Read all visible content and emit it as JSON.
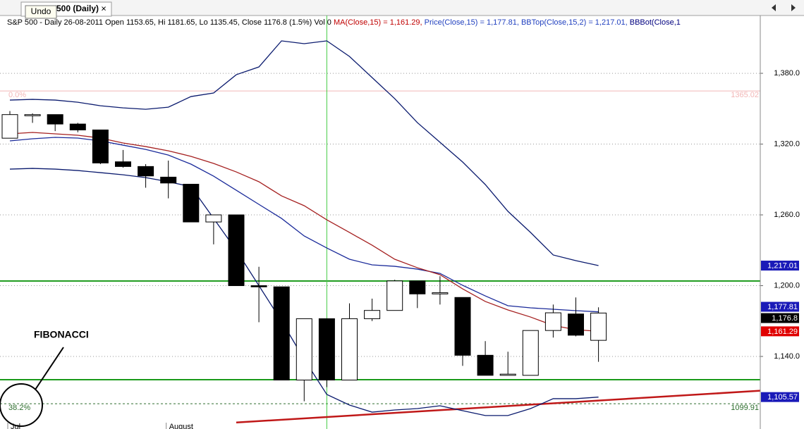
{
  "window": {
    "tab_title": "500 (Daily)",
    "tab_close": "×",
    "tooltip": "Undo"
  },
  "chart_data": {
    "type": "candlestick",
    "header": [
      {
        "text": "S&P 500 - Daily 26-08-2011 Open 1153.65, Hi 1181.65, Lo 1135.45, Close 1176.8 (1.5%) Vol 0 ",
        "color": "#000000"
      },
      {
        "text": "MA(Close,15) = 1,161.29, ",
        "color": "#c00000"
      },
      {
        "text": "Price(Close,15) = 1,177.81, ",
        "color": "#1f3fbf"
      },
      {
        "text": "BBTop(Close,15,2) = 1,217.01, ",
        "color": "#1f3fbf"
      },
      {
        "text": "BBBot(Close,1",
        "color": "#00007f"
      }
    ],
    "categories": [
      "Jul",
      null,
      null,
      null,
      null,
      null,
      null,
      "August",
      null,
      null,
      null,
      null,
      null,
      null,
      null,
      null,
      null,
      null,
      null,
      null,
      null,
      null,
      null,
      null,
      null,
      null,
      null
    ],
    "open": [
      1325,
      1344,
      1345,
      1337,
      1332,
      1305,
      1301,
      1292,
      1286,
      1254,
      1260,
      1200,
      1199,
      1120,
      1172,
      1120,
      1172,
      1179,
      1204,
      1193,
      1190,
      1141,
      1124,
      1124,
      1162,
      1176,
      1153.65
    ],
    "high": [
      1348,
      1346,
      1345,
      1338,
      1332,
      1315,
      1303,
      1306,
      1286,
      1260,
      1260,
      1216,
      1199,
      1172,
      1172,
      1185,
      1189,
      1205,
      1204,
      1208,
      1190,
      1153,
      1144,
      1162,
      1184,
      1190,
      1181.65
    ],
    "low": [
      1325,
      1338,
      1331,
      1330,
      1303,
      1300,
      1283,
      1274,
      1254,
      1235,
      1200,
      1169,
      1120,
      1102,
      1114,
      1120,
      1170,
      1179,
      1181,
      1184,
      1132,
      1124,
      1124,
      1124,
      1156,
      1157,
      1135.45
    ],
    "close": [
      1345,
      1345,
      1337,
      1332,
      1304,
      1301,
      1293,
      1287,
      1254,
      1260,
      1200,
      1199,
      1120,
      1172,
      1120,
      1172,
      1179,
      1204,
      1193,
      1194,
      1141,
      1124,
      1125,
      1162,
      1177,
      1158,
      1176.8
    ],
    "up_color": "#ffffff",
    "down_color": "#000000",
    "close_label": "1,176.8",
    "close_label_color": "#000000",
    "series": [
      {
        "color": "#0a1a6e",
        "label_color": "#1a1ab8",
        "end_label": "1,217.01",
        "values": [
          1357.3,
          1357.9,
          1357.3,
          1355.5,
          1352.5,
          1350.7,
          1349.5,
          1351.3,
          1360.3,
          1363.3,
          1378.8,
          1385.4,
          1407.5,
          1405.1,
          1407.5,
          1394.3,
          1376.4,
          1358.5,
          1338.2,
          1321.5,
          1304.8,
          1285.7,
          1263,
          1245.1,
          1226,
          1221.2,
          1217.01
        ]
      },
      {
        "color": "#1a2a9a",
        "label_color": "#1a1ab8",
        "end_label": "1,177.81",
        "values": [
          1322.7,
          1324.5,
          1325.7,
          1325.1,
          1322.7,
          1319.1,
          1315.5,
          1310.7,
          1303,
          1292.8,
          1280.9,
          1268.9,
          1257,
          1242.1,
          1231.9,
          1222.4,
          1217.6,
          1216.4,
          1214,
          1210.4,
          1200.3,
          1191.3,
          1183,
          1181.2,
          1180,
          1178.8,
          1177.81
        ]
      },
      {
        "color": "#a52020",
        "label_color": "#e00000",
        "end_label": "1,161.29",
        "values": [
          1328.7,
          1329.9,
          1328.7,
          1327.5,
          1325.1,
          1320.9,
          1317.9,
          1314.3,
          1309.6,
          1303.6,
          1296.4,
          1288.1,
          1276.1,
          1267.8,
          1255.8,
          1245.1,
          1234.3,
          1222.4,
          1215.2,
          1209.3,
          1197.3,
          1186.6,
          1179.4,
          1173.4,
          1166.3,
          1162.7,
          1161.29
        ]
      },
      {
        "color": "#0a1a6e",
        "label_color": "#1a1ab8",
        "end_label": "1,105.57",
        "values": [
          1298.8,
          1299.4,
          1298.8,
          1297.6,
          1295.8,
          1294,
          1291.6,
          1288.1,
          1283.9,
          1257,
          1230,
          1200,
          1170,
          1137.6,
          1107.8,
          1098.8,
          1092.8,
          1094.6,
          1095.8,
          1098.2,
          1094,
          1089.9,
          1089.9,
          1095.8,
          1104.2,
          1104.2,
          1105.57
        ]
      }
    ],
    "ylim": [
      1078.5,
      1429
    ],
    "yticks": [
      {
        "value": 1140,
        "label": "1,140.0"
      },
      {
        "value": 1200,
        "label": "1,200.0"
      },
      {
        "value": 1260,
        "label": "1,260.0"
      },
      {
        "value": 1320,
        "label": "1,320.0"
      },
      {
        "value": 1380,
        "label": "1,380.0"
      }
    ],
    "grid": true,
    "levels": [
      {
        "value": 1204,
        "color": "#1a9a1a"
      },
      {
        "value": 1120.3,
        "color": "#1a9a1a"
      }
    ],
    "fibonacci": [
      {
        "label": "0.0%",
        "value": 1365.02,
        "color": "#f2b6b6",
        "dashed": false
      },
      {
        "label": "38.2%",
        "value": 1099.91,
        "color": "#2e6e2e",
        "dashed": true
      }
    ],
    "vertical_marker": 14,
    "vertical_marker_color": "#44cc44",
    "trendline": {
      "x": [
        10,
        33.2
      ],
      "y": [
        1084,
        1111
      ],
      "color": "#c01818"
    },
    "annotation": "FIBONACCI"
  }
}
